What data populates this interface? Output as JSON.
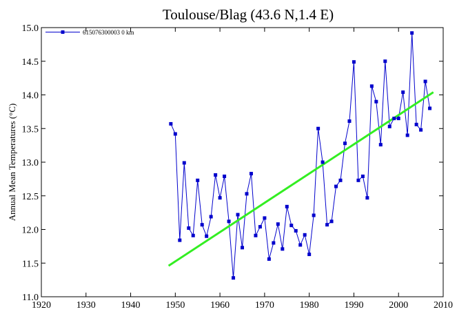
{
  "chart_data": {
    "type": "line",
    "title": "Toulouse/Blag (43.6 N,1.4 E)",
    "ylabel": "Annual Mean Temperatures (°C)",
    "xlabel": "",
    "xlim": [
      1920,
      2010
    ],
    "ylim": [
      11.0,
      15.0
    ],
    "x_ticks": [
      1920,
      1930,
      1940,
      1950,
      1960,
      1970,
      1980,
      1990,
      2000,
      2010
    ],
    "y_ticks": [
      "11.0",
      "11.5",
      "12.0",
      "12.5",
      "13.0",
      "13.5",
      "14.0",
      "14.5",
      "15.0"
    ],
    "grid": false,
    "legend_position": "top-left",
    "series": [
      {
        "name": "615076300003  0 km",
        "color": "#0000cc",
        "marker": "square",
        "x": [
          1949,
          1950,
          1951,
          1952,
          1953,
          1954,
          1955,
          1956,
          1957,
          1958,
          1959,
          1960,
          1961,
          1962,
          1963,
          1964,
          1965,
          1966,
          1967,
          1968,
          1969,
          1970,
          1971,
          1972,
          1973,
          1974,
          1975,
          1976,
          1977,
          1978,
          1979,
          1980,
          1981,
          1982,
          1983,
          1984,
          1985,
          1986,
          1987,
          1988,
          1989,
          1990,
          1991,
          1992,
          1993,
          1994,
          1995,
          1996,
          1997,
          1998,
          1999,
          2000,
          2001,
          2002,
          2003,
          2004,
          2005,
          2006,
          2007
        ],
        "y": [
          13.57,
          13.42,
          11.84,
          12.99,
          12.02,
          11.91,
          12.73,
          12.07,
          11.9,
          12.19,
          12.81,
          12.47,
          12.79,
          12.12,
          11.28,
          12.22,
          11.73,
          12.53,
          12.83,
          11.91,
          12.04,
          12.17,
          11.56,
          11.8,
          12.08,
          11.71,
          12.34,
          12.06,
          11.98,
          11.77,
          11.92,
          11.63,
          12.21,
          13.5,
          13.0,
          12.07,
          12.12,
          12.64,
          12.73,
          13.28,
          13.61,
          14.49,
          12.73,
          12.79,
          12.47,
          14.13,
          13.9,
          13.26,
          14.5,
          13.53,
          13.65,
          13.65,
          14.04,
          13.4,
          14.92,
          13.56,
          13.48,
          14.2,
          13.8
        ]
      },
      {
        "name": "",
        "type": "trend",
        "color": "#33ee22",
        "x": [
          1948.5,
          2007.8
        ],
        "y": [
          11.46,
          14.04
        ]
      }
    ]
  }
}
